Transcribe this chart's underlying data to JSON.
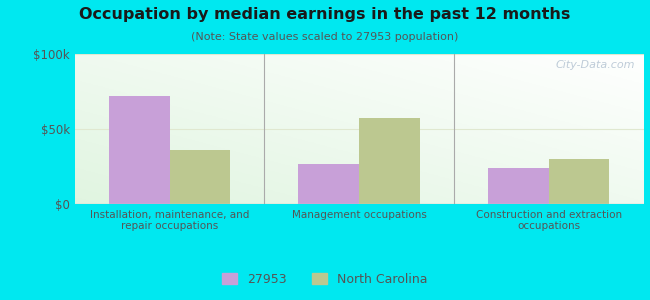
{
  "title": "Occupation by median earnings in the past 12 months",
  "subtitle": "(Note: State values scaled to 27953 population)",
  "categories": [
    "Installation, maintenance, and\nrepair occupations",
    "Management occupations",
    "Construction and extraction\noccupations"
  ],
  "values_27953": [
    72000,
    27000,
    24000
  ],
  "values_nc": [
    36000,
    57000,
    30000
  ],
  "color_27953": "#c8a0d8",
  "color_nc": "#bcc890",
  "background_outer": "#00e8f0",
  "ylim": [
    0,
    100000
  ],
  "yticks": [
    0,
    50000,
    100000
  ],
  "ytick_labels": [
    "$0",
    "$50k",
    "$100k"
  ],
  "legend_label_1": "27953",
  "legend_label_2": "North Carolina",
  "bar_width": 0.32,
  "watermark": "City-Data.com",
  "grid_color": "#e0e8d0",
  "separator_color": "#aaaaaa",
  "title_color": "#1a1a1a",
  "subtitle_color": "#555555",
  "tick_label_color": "#555555"
}
